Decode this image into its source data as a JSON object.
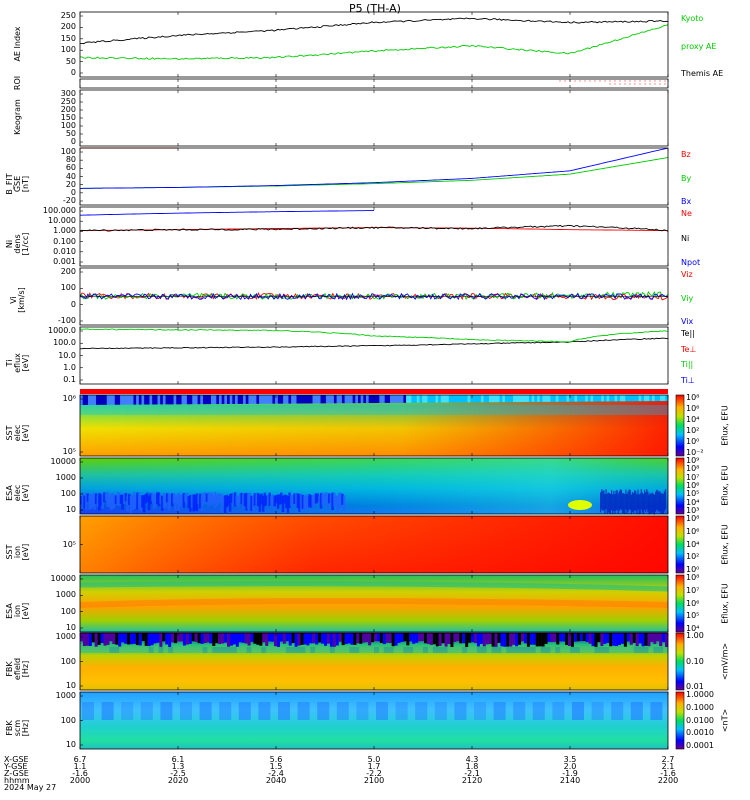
{
  "title": "P5 (TH-A)",
  "footer": {
    "row_labels": [
      "X-GSE",
      "Y-GSE",
      "Z-GSE",
      "hhmm",
      "2024 May 27"
    ],
    "columns": [
      {
        "x": "6.7",
        "y": "1.1",
        "z": "-1.6",
        "t": "2000"
      },
      {
        "x": "6.1",
        "y": "1.3",
        "z": "-2.5",
        "t": "2020"
      },
      {
        "x": "5.6",
        "y": "1.5",
        "z": "-2.4",
        "t": "2040"
      },
      {
        "x": "5.0",
        "y": "1.7",
        "z": "-2.2",
        "t": "2100"
      },
      {
        "x": "4.3",
        "y": "1.8",
        "z": "-2.1",
        "t": "2120"
      },
      {
        "x": "3.5",
        "y": "2.0",
        "z": "-1.9",
        "t": "2140"
      },
      {
        "x": "2.7",
        "y": "2.1",
        "z": "-1.6",
        "t": "2200"
      }
    ]
  },
  "panels": {
    "ae": {
      "ylabel": "AE Index",
      "ticks": [
        "250",
        "200",
        "150",
        "100",
        "50",
        "0"
      ],
      "legend": [
        {
          "text": "Kyoto",
          "color": "#00cc00"
        },
        {
          "text": "proxy AE",
          "color": "#00cc00"
        },
        {
          "text": "Themis AE",
          "color": "#000000"
        }
      ]
    },
    "roi": {
      "ylabel": "ROI"
    },
    "keogram": {
      "ylabel": "Keogram",
      "ticks": [
        "300",
        "250",
        "200",
        "150",
        "100",
        "50",
        "0"
      ]
    },
    "bfit": {
      "ylabel": "B_FIT\nGSE\n[nT]",
      "ticks": [
        "100",
        "80",
        "60",
        "40",
        "20",
        "0",
        "-20"
      ],
      "legend": [
        {
          "text": "Bz",
          "color": "#ff0000"
        },
        {
          "text": "By",
          "color": "#00cc00"
        },
        {
          "text": "Bx",
          "color": "#0000ff"
        }
      ]
    },
    "ni": {
      "ylabel": "Ni\ndens\n[1/cc]",
      "ticks": [
        "100.000",
        "10.000",
        "1.000",
        "0.100",
        "0.010",
        "0.001"
      ],
      "legend": [
        {
          "text": "Ne",
          "color": "#ff0000"
        },
        {
          "text": "Ni",
          "color": "#000000"
        },
        {
          "text": "Npot",
          "color": "#0000ff"
        }
      ]
    },
    "vi": {
      "ylabel": "Vi\n[km/s]",
      "ticks": [
        "200",
        "100",
        "0",
        "-100"
      ],
      "legend": [
        {
          "text": "Viz",
          "color": "#ff0000"
        },
        {
          "text": "Viy",
          "color": "#00cc00"
        },
        {
          "text": "Vix",
          "color": "#0000ff"
        }
      ]
    },
    "ti": {
      "ylabel": "Ti\neflux\n[eV]",
      "ticks": [
        "1000.0",
        "100.0",
        "10.0",
        "1.0",
        "0.1"
      ],
      "legend": [
        {
          "text": "Te||",
          "color": "#000000"
        },
        {
          "text": "Te⊥",
          "color": "#ff0000"
        },
        {
          "text": "Ti||",
          "color": "#00cc00"
        },
        {
          "text": "Ti⊥",
          "color": "#0000ff"
        }
      ]
    },
    "sst_e": {
      "ylabel": "SST\nelec\n[eV]",
      "ticks": [
        "10⁶",
        "10⁵"
      ],
      "cb_ticks": [
        "10⁸",
        "10⁶",
        "10⁴",
        "10²",
        "10⁰",
        "10⁻²"
      ],
      "cb_label": "Eflux, EFU"
    },
    "esa_e": {
      "ylabel": "ESA\nelec\n[eV]",
      "ticks": [
        "10000",
        "1000",
        "100",
        "10"
      ],
      "cb_ticks": [
        "10⁹",
        "10⁸",
        "10⁷",
        "10⁶",
        "10⁵",
        "10⁴",
        "10³"
      ],
      "cb_label": "Eflux, EFU"
    },
    "sst_i": {
      "ylabel": "SST\nion\n[eV]",
      "ticks": [
        "10⁵"
      ],
      "cb_ticks": [
        "10⁸",
        "10⁶",
        "10⁴",
        "10²",
        "10⁰"
      ],
      "cb_label": "Eflux, EFU"
    },
    "esa_i": {
      "ylabel": "ESA\nion\n[eV]",
      "ticks": [
        "10000",
        "1000",
        "100",
        "10"
      ],
      "cb_ticks": [
        "10⁸",
        "10⁷",
        "10⁶",
        "10⁵",
        "10⁴"
      ],
      "cb_label": "Eflux, EFU"
    },
    "fbk_e": {
      "ylabel": "FBK\nefield\n[Hz]",
      "ticks": [
        "1000",
        "100",
        "10"
      ],
      "cb_ticks": [
        "1.00",
        "0.10",
        "0.01"
      ],
      "cb_label": "<mV/m>"
    },
    "fbk_b": {
      "ylabel": "FBK\nscm\n[Hz]",
      "ticks": [
        "1000",
        "100",
        "10"
      ],
      "cb_ticks": [
        "1.0000",
        "0.1000",
        "0.0100",
        "0.0010",
        "0.0001"
      ],
      "cb_label": "<nT>"
    }
  },
  "chart_data": [
    {
      "type": "line",
      "title": "AE Index",
      "x": [
        2000,
        2020,
        2040,
        2100,
        2120,
        2140,
        2200
      ],
      "ylim": [
        0,
        250
      ],
      "series": [
        {
          "name": "Kyoto proxy AE",
          "values": [
            75,
            70,
            75,
            100,
            120,
            90,
            200
          ]
        },
        {
          "name": "Themis AE",
          "values": [
            130,
            160,
            180,
            210,
            225,
            210,
            215
          ]
        }
      ]
    },
    {
      "type": "line",
      "title": "B_FIT GSE",
      "x": [
        2000,
        2020,
        2040,
        2100,
        2120,
        2140,
        2200
      ],
      "ylim": [
        -20,
        100
      ],
      "series": [
        {
          "name": "Bz",
          "values": [
            100,
            102,
            null,
            null,
            null,
            null,
            null
          ]
        },
        {
          "name": "By",
          "values": [
            15,
            17,
            20,
            25,
            32,
            45,
            80
          ]
        },
        {
          "name": "Bx",
          "values": [
            15,
            17,
            21,
            27,
            36,
            52,
            100
          ]
        }
      ]
    },
    {
      "type": "line",
      "title": "Ni",
      "x": [
        2000,
        2020,
        2040,
        2100,
        2120,
        2140,
        2200
      ],
      "ylim": [
        0.001,
        100
      ],
      "series": [
        {
          "name": "Ne",
          "values": [
            1.0,
            1.2,
            1.5,
            1.8,
            1.6,
            1.2,
            1.0
          ]
        },
        {
          "name": "Ni",
          "values": [
            1.0,
            1.2,
            1.3,
            1.8,
            1.5,
            2.5,
            1.0
          ]
        },
        {
          "name": "Npot",
          "values": [
            20,
            30,
            40,
            50,
            null,
            null,
            null
          ]
        }
      ]
    },
    {
      "type": "line",
      "title": "Vi",
      "x": [
        2000,
        2020,
        2040,
        2100,
        2120,
        2140,
        2200
      ],
      "ylim": [
        -150,
        150
      ],
      "series": [
        {
          "name": "Viz",
          "values": [
            5,
            0,
            3,
            0,
            2,
            0,
            -5
          ]
        },
        {
          "name": "Viy",
          "values": [
            0,
            3,
            0,
            2,
            0,
            5,
            10
          ]
        },
        {
          "name": "Vix",
          "values": [
            0,
            0,
            0,
            0,
            0,
            0,
            0
          ]
        }
      ]
    },
    {
      "type": "line",
      "title": "Ti",
      "x": [
        2000,
        2020,
        2040,
        2100,
        2120,
        2140,
        2200
      ],
      "ylim": [
        0.1,
        3000
      ],
      "series": [
        {
          "name": "Te||",
          "values": [
            60,
            70,
            80,
            100,
            140,
            200,
            400
          ]
        },
        {
          "name": "Ti||",
          "values": [
            2000,
            1800,
            1600,
            600,
            300,
            200,
            1500
          ]
        }
      ]
    },
    {
      "type": "heatmap",
      "title": "SST elec"
    },
    {
      "type": "heatmap",
      "title": "ESA elec"
    },
    {
      "type": "heatmap",
      "title": "SST ion"
    },
    {
      "type": "heatmap",
      "title": "ESA ion"
    },
    {
      "type": "heatmap",
      "title": "FBK efield"
    },
    {
      "type": "heatmap",
      "title": "FBK scm"
    }
  ]
}
